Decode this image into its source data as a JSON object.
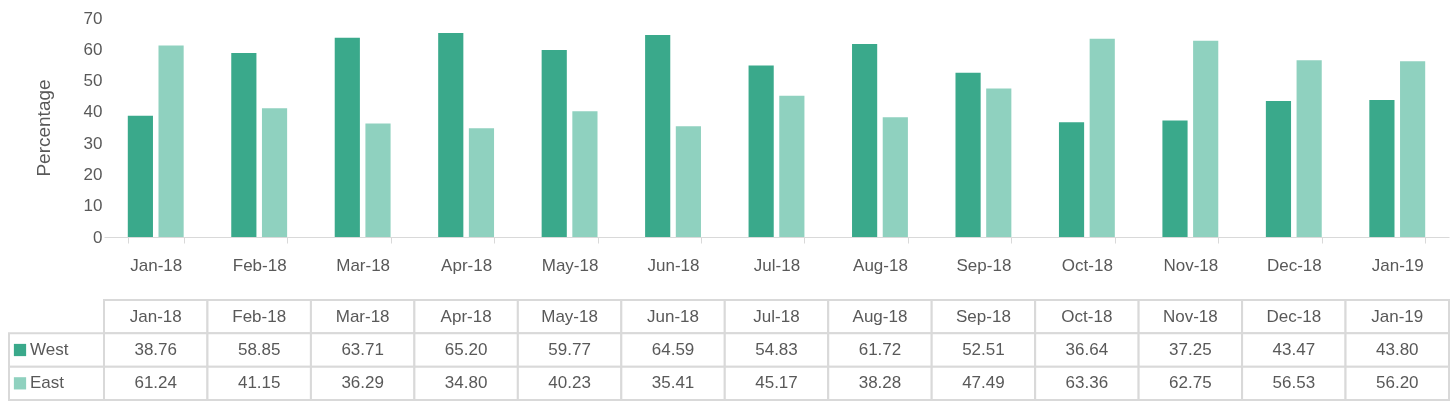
{
  "chart_data": {
    "type": "bar",
    "ylabel": "Percentage",
    "categories": [
      "Jan-18",
      "Feb-18",
      "Mar-18",
      "Apr-18",
      "May-18",
      "Jun-18",
      "Jul-18",
      "Aug-18",
      "Sep-18",
      "Oct-18",
      "Nov-18",
      "Dec-18",
      "Jan-19"
    ],
    "series": [
      {
        "name": "West",
        "color": "#3aa98b",
        "values": [
          38.76,
          58.85,
          63.71,
          65.2,
          59.77,
          64.59,
          54.83,
          61.72,
          52.51,
          36.64,
          37.25,
          43.47,
          43.8
        ],
        "value_labels": [
          "38.76",
          "58.85",
          "63.71",
          "65.20",
          "59.77",
          "64.59",
          "54.83",
          "61.72",
          "52.51",
          "36.64",
          "37.25",
          "43.47",
          "43.80"
        ]
      },
      {
        "name": "East",
        "color": "#8fd1bf",
        "values": [
          61.24,
          41.15,
          36.29,
          34.8,
          40.23,
          35.41,
          45.17,
          38.28,
          47.49,
          63.36,
          62.75,
          56.53,
          56.2
        ],
        "value_labels": [
          "61.24",
          "41.15",
          "36.29",
          "34.80",
          "40.23",
          "35.41",
          "45.17",
          "38.28",
          "47.49",
          "63.36",
          "62.75",
          "56.53",
          "56.20"
        ]
      }
    ],
    "legend": "bottom left",
    "ylim": [
      0,
      70
    ],
    "yticks": [
      0,
      10,
      20,
      30,
      40,
      50,
      60,
      70
    ]
  }
}
